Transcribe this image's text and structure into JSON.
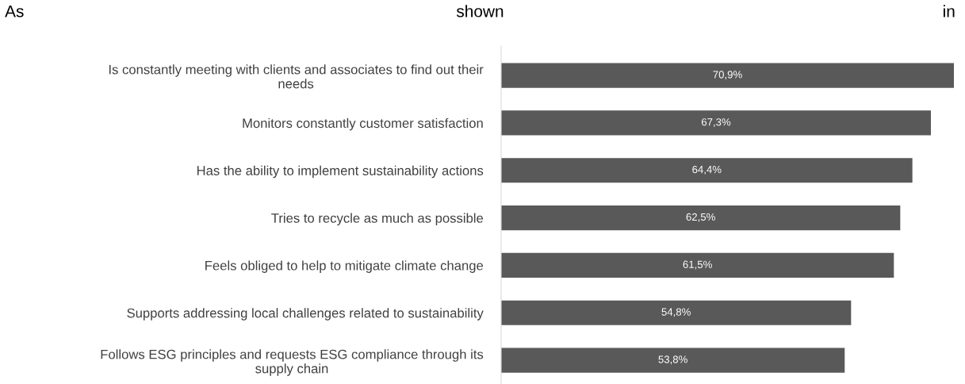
{
  "chart_data": {
    "type": "bar",
    "orientation": "horizontal",
    "annotations": [
      "As shown in"
    ],
    "categories": [
      "Is constantly meeting with clients and associates to find out their\nneeds",
      "Monitors constantly customer satisfaction",
      "Has the ability to implement sustainability actions",
      "Tries to recycle as much as possible",
      "Feels obliged to help to mitigate climate change",
      "Supports addressing local challenges related to sustainability",
      "Follows ESG principles and requests ESG compliance through its\nsupply chain"
    ],
    "values": [
      70.9,
      67.3,
      64.4,
      62.5,
      61.5,
      54.8,
      53.8
    ],
    "value_labels": [
      "70,9%",
      "67,3%",
      "64,4%",
      "62,5%",
      "61,5%",
      "54,8%",
      "53,8%"
    ],
    "color": "#595959",
    "grid": false,
    "legend": false
  }
}
